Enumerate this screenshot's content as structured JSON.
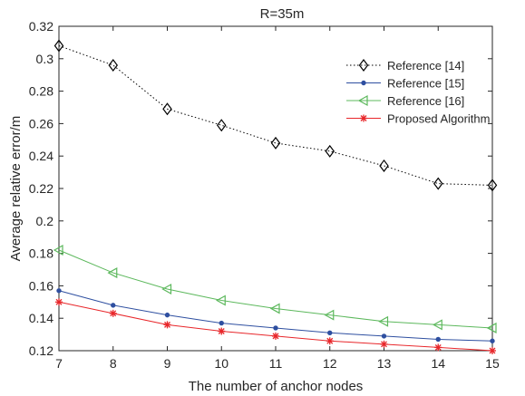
{
  "chart_data": {
    "type": "line",
    "title": "R=35m",
    "xlabel": "The number of anchor nodes",
    "ylabel": "Average relative error/m",
    "x": [
      7,
      8,
      9,
      10,
      11,
      12,
      13,
      14,
      15
    ],
    "xlim": [
      7,
      15
    ],
    "ylim": [
      0.12,
      0.32
    ],
    "xticks": [
      "7",
      "8",
      "9",
      "10",
      "11",
      "12",
      "13",
      "14",
      "15"
    ],
    "yticks": [
      "0.12",
      "0.14",
      "0.16",
      "0.18",
      "0.2",
      "0.22",
      "0.24",
      "0.26",
      "0.28",
      "0.3",
      "0.32"
    ],
    "grid": false,
    "legend_position": "top-right",
    "series": [
      {
        "name": "Reference [14]",
        "values": [
          0.308,
          0.296,
          0.269,
          0.259,
          0.248,
          0.243,
          0.234,
          0.223,
          0.222
        ],
        "color": "#000000",
        "line_style": "dotted",
        "marker": "diamond"
      },
      {
        "name": "Reference [15]",
        "values": [
          0.157,
          0.148,
          0.142,
          0.137,
          0.134,
          0.131,
          0.129,
          0.127,
          0.126
        ],
        "color": "#2e4fa0",
        "line_style": "solid",
        "marker": "dot"
      },
      {
        "name": "Reference [16]",
        "values": [
          0.182,
          0.168,
          0.158,
          0.151,
          0.146,
          0.142,
          0.138,
          0.136,
          0.134
        ],
        "color": "#5cb85c",
        "line_style": "solid",
        "marker": "triangle-left"
      },
      {
        "name": "Proposed Algorithm",
        "values": [
          0.15,
          0.143,
          0.136,
          0.132,
          0.129,
          0.126,
          0.124,
          0.122,
          0.12
        ],
        "color": "#e8262a",
        "line_style": "solid",
        "marker": "asterisk"
      }
    ]
  }
}
